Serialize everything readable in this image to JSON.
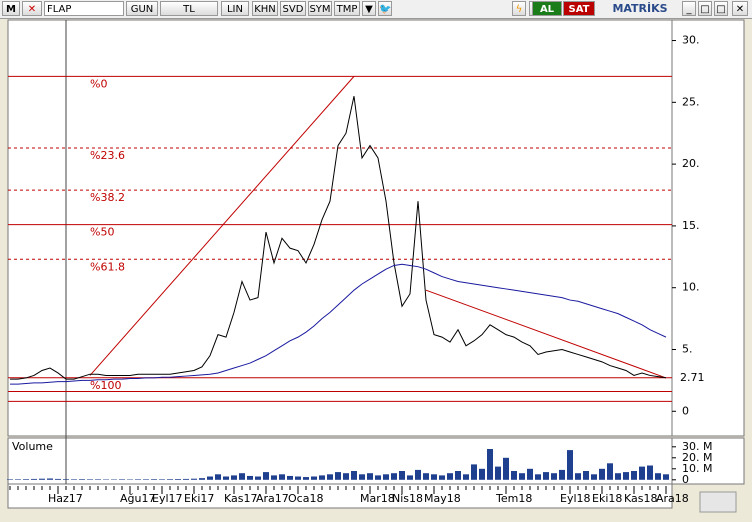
{
  "toolbar": {
    "symbol_menu": "M",
    "symbol": "FLAP",
    "buttons": [
      "GUN",
      "TL",
      "LIN",
      "KHN",
      "SVD",
      "SYM",
      "TMP"
    ],
    "buy": "AL",
    "sell": "SAT",
    "brand": "MATRİKS"
  },
  "chart_data": {
    "type": "line",
    "categories": [
      null,
      null,
      null,
      null,
      null,
      null,
      "Haz17",
      null,
      null,
      null,
      null,
      null,
      null,
      null,
      null,
      "Ağu17",
      null,
      null,
      null,
      "Eyl17",
      null,
      null,
      null,
      "Eki17",
      null,
      null,
      null,
      null,
      "Kas17",
      null,
      null,
      null,
      "Ara17",
      null,
      null,
      null,
      "Oca18",
      null,
      null,
      null,
      null,
      null,
      null,
      null,
      null,
      "Mar18",
      null,
      null,
      null,
      "Nis18",
      null,
      null,
      null,
      "May18",
      null,
      null,
      null,
      null,
      null,
      null,
      null,
      null,
      "Tem18",
      null,
      null,
      null,
      null,
      null,
      null,
      null,
      "Eyl18",
      null,
      null,
      null,
      "Eki18",
      null,
      null,
      null,
      "Kas18",
      null,
      null,
      null,
      "Ara18"
    ],
    "series": [
      {
        "color": "#000000",
        "values": [
          2.6,
          2.6,
          2.7,
          2.9,
          3.3,
          3.5,
          3.1,
          2.6,
          2.6,
          2.8,
          3.0,
          3.0,
          2.9,
          2.9,
          2.9,
          2.9,
          3.0,
          3.0,
          3.0,
          3.0,
          3.0,
          3.1,
          3.2,
          3.3,
          3.6,
          4.5,
          6.2,
          6.0,
          8.0,
          10.5,
          9.0,
          9.2,
          14.5,
          12.0,
          14.0,
          13.2,
          13.0,
          12.0,
          13.5,
          15.5,
          17.0,
          21.5,
          22.5,
          25.5,
          20.5,
          21.5,
          20.5,
          17.0,
          12.0,
          8.5,
          9.5,
          17.0,
          9.0,
          6.2,
          6.0,
          5.6,
          6.6,
          5.3,
          5.7,
          6.2,
          7.0,
          6.6,
          6.2,
          6.0,
          5.6,
          5.3,
          4.6,
          4.8,
          4.9,
          5.0,
          4.8,
          4.6,
          4.4,
          4.2,
          4.0,
          3.7,
          3.5,
          3.3,
          2.9,
          3.1,
          2.9,
          2.8,
          2.71
        ]
      },
      {
        "color": "#1a1aa0",
        "values": [
          2.2,
          2.2,
          2.25,
          2.3,
          2.3,
          2.35,
          2.4,
          2.4,
          2.45,
          2.5,
          2.5,
          2.55,
          2.55,
          2.6,
          2.6,
          2.65,
          2.65,
          2.7,
          2.7,
          2.75,
          2.75,
          2.8,
          2.85,
          2.9,
          2.95,
          3.0,
          3.1,
          3.3,
          3.5,
          3.7,
          3.9,
          4.2,
          4.5,
          4.9,
          5.3,
          5.7,
          6.0,
          6.4,
          6.9,
          7.5,
          8.0,
          8.6,
          9.2,
          9.8,
          10.3,
          10.7,
          11.1,
          11.5,
          11.8,
          11.9,
          11.8,
          11.7,
          11.5,
          11.2,
          10.9,
          10.7,
          10.5,
          10.4,
          10.3,
          10.2,
          10.1,
          10.0,
          9.9,
          9.8,
          9.7,
          9.6,
          9.5,
          9.4,
          9.3,
          9.2,
          9.0,
          8.9,
          8.7,
          8.5,
          8.3,
          8.1,
          7.9,
          7.6,
          7.3,
          7.0,
          6.6,
          6.3,
          6.0
        ]
      }
    ],
    "ylim": [
      -2,
      31.5
    ],
    "yticks": [
      {
        "value": 30,
        "label": "30."
      },
      {
        "value": 25,
        "label": "25."
      },
      {
        "value": 20,
        "label": "20."
      },
      {
        "value": 15,
        "label": "15."
      },
      {
        "value": 10,
        "label": "10."
      },
      {
        "value": 5,
        "label": "5."
      },
      0
    ],
    "last_price": 2.71,
    "fibonacci": [
      {
        "label": "%0",
        "value": 27.1,
        "dashed": false
      },
      {
        "label": "%23.6",
        "value": 21.3,
        "dashed": true
      },
      {
        "label": "%38.2",
        "value": 17.9,
        "dashed": true
      },
      {
        "label": "%50",
        "value": 15.1,
        "dashed": false
      },
      {
        "label": "%61.8",
        "value": 12.3,
        "dashed": true
      },
      {
        "label": "%100",
        "value": 2.71,
        "dashed": false
      }
    ],
    "extra_levels": [
      1.6,
      0.8
    ],
    "level_color": "#c00000",
    "trendlines": [
      {
        "start": 10,
        "end": 43,
        "values": [
          2.9,
          27.1
        ]
      },
      {
        "start": 52,
        "end": 82,
        "values": [
          9.8,
          2.7
        ]
      }
    ],
    "volume": {
      "title": "Volume",
      "color": "#1f3f8f",
      "ylim": [
        -2,
        38
      ],
      "yticks": [
        {
          "value": 30,
          "label": "30. M"
        },
        {
          "value": 20,
          "label": "20. M"
        },
        {
          "value": 10,
          "label": "10. M"
        },
        0
      ],
      "values": [
        0.5,
        0.5,
        0.6,
        0.8,
        1.0,
        1.2,
        0.8,
        0.6,
        0.5,
        0.6,
        0.5,
        0.5,
        0.4,
        0.4,
        0.5,
        0.4,
        0.5,
        0.5,
        0.6,
        0.5,
        0.6,
        0.7,
        0.8,
        1.0,
        1.5,
        3.0,
        5.0,
        3.0,
        4.0,
        6.0,
        3.5,
        3.0,
        7.0,
        4.0,
        5.0,
        3.5,
        3.0,
        2.5,
        3.0,
        4.0,
        5.0,
        7.0,
        6.0,
        8.0,
        5.0,
        6.0,
        4.0,
        5.0,
        6.0,
        8.0,
        4.0,
        9.0,
        6.0,
        5.0,
        4.0,
        6.0,
        8.0,
        5.0,
        14.0,
        10.0,
        28.0,
        12.0,
        20.0,
        8.0,
        6.0,
        10.0,
        5.0,
        7.0,
        6.0,
        9.0,
        27.0,
        6.0,
        8.0,
        5.0,
        10.0,
        15.0,
        6.0,
        7.0,
        8.0,
        12.0,
        13.0,
        6.0,
        5.0
      ]
    }
  }
}
